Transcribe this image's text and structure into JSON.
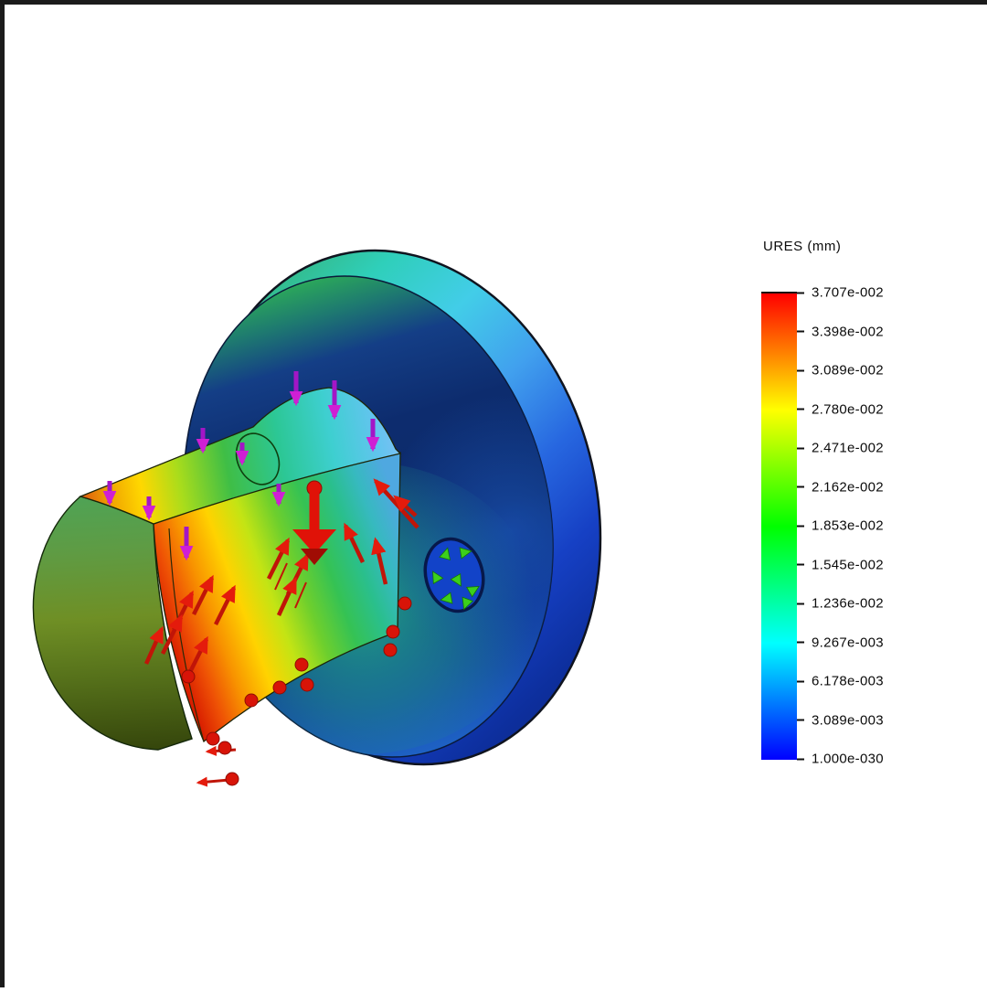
{
  "frame": {
    "border_color": "#1b1b1b",
    "background_color": "#ffffff"
  },
  "legend": {
    "title": "URES (mm)",
    "labels": [
      "3.707e-002",
      "3.398e-002",
      "3.089e-002",
      "2.780e-002",
      "2.471e-002",
      "2.162e-002",
      "1.853e-002",
      "1.545e-002",
      "1.236e-002",
      "9.267e-003",
      "6.178e-003",
      "3.089e-003",
      "1.000e-030"
    ]
  },
  "chart_data": {
    "type": "heatmap",
    "title": "URES (mm)",
    "quantity": "URES",
    "unit": "mm",
    "scale_labels": [
      "3.707e-002",
      "3.398e-002",
      "3.089e-002",
      "2.780e-002",
      "2.471e-002",
      "2.162e-002",
      "1.853e-002",
      "1.545e-002",
      "1.236e-002",
      "9.267e-003",
      "6.178e-003",
      "3.089e-003",
      "1.000e-030"
    ],
    "scale_values": [
      0.03707,
      0.03398,
      0.03089,
      0.0278,
      0.02471,
      0.02162,
      0.01853,
      0.01545,
      0.01236,
      0.009267,
      0.006178,
      0.003089,
      1e-30
    ],
    "scale_max": 0.03707,
    "scale_min": 1e-30,
    "orientation": "vertical",
    "legend_position": "right",
    "colormap": [
      "#ff0000",
      "#ff7f00",
      "#ffff00",
      "#7fff00",
      "#00ff00",
      "#00ff7f",
      "#00ffff",
      "#007fff",
      "#0000ff"
    ],
    "annotation_colors": {
      "load_arrows": "#d81408",
      "distributed_load_arrows": "#b316c6",
      "fixture_symbols": "#3cd01c"
    }
  }
}
